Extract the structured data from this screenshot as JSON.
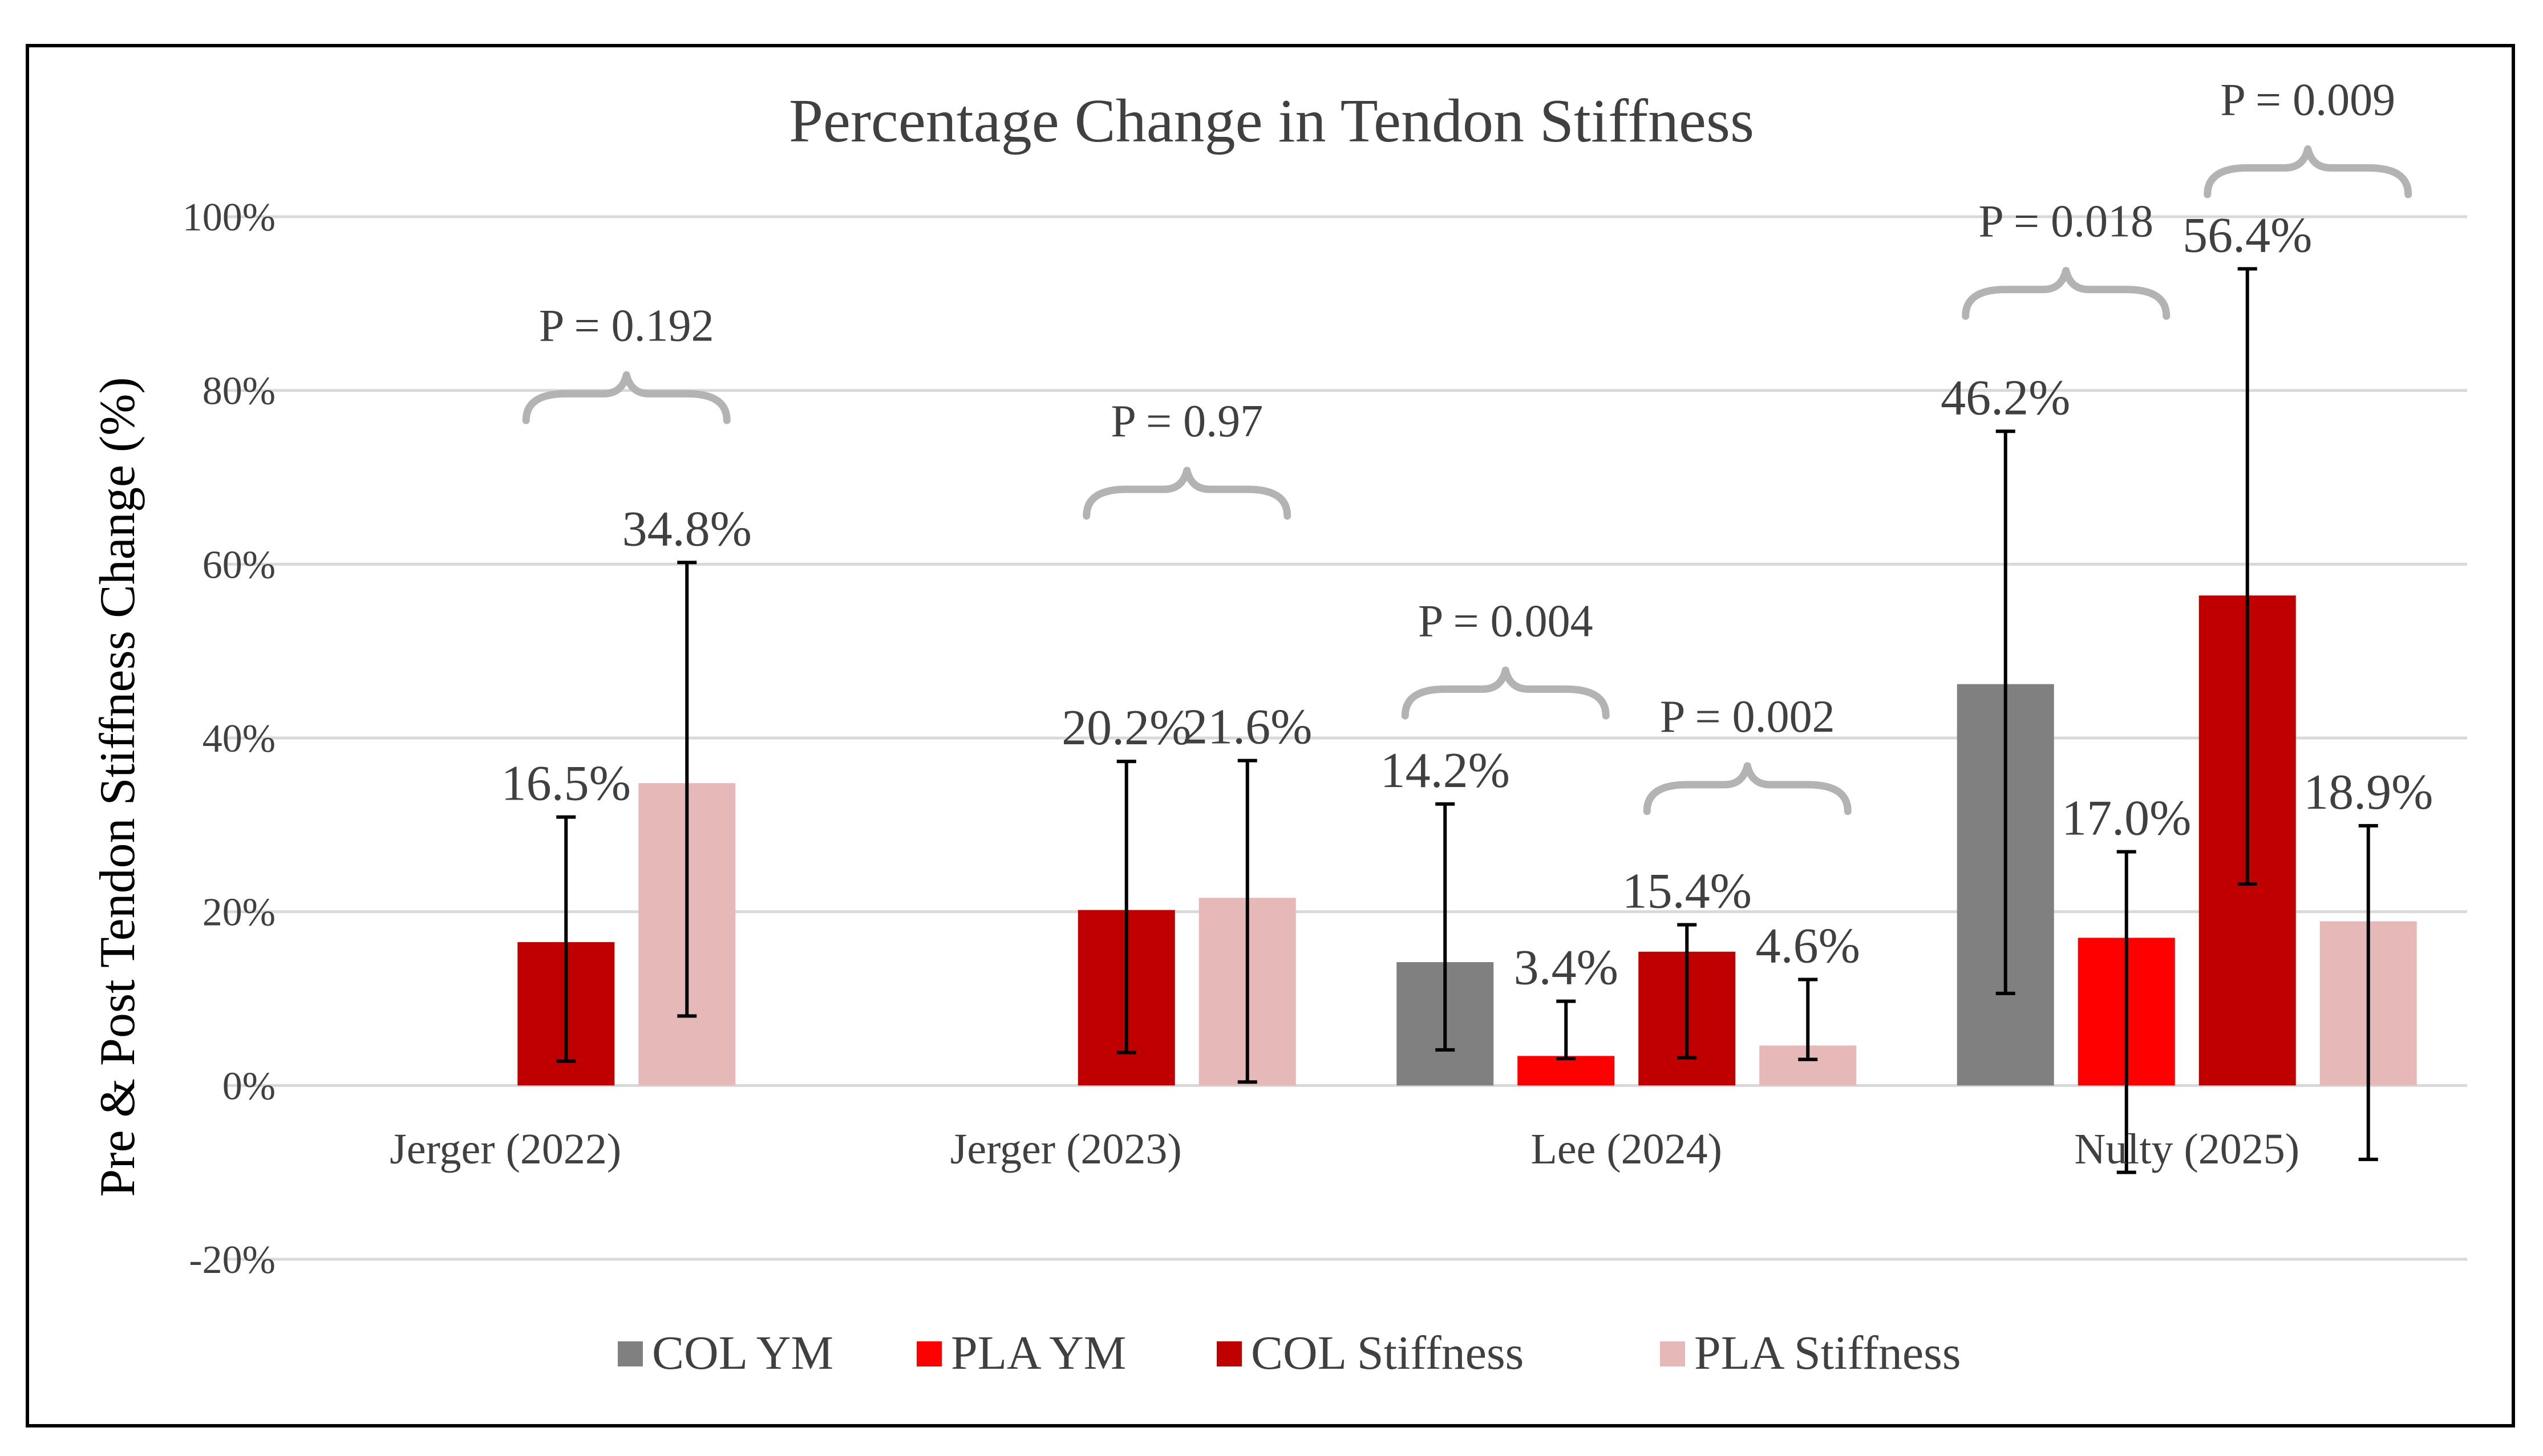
{
  "chart_data": {
    "type": "bar",
    "title": "Percentage Change in Tendon Stiffness",
    "xlabel": "",
    "ylabel": "Pre & Post Tendon Stiffness  Change (%)",
    "ylim": [
      -20,
      100
    ],
    "yticks": [
      100,
      80,
      60,
      40,
      20,
      0,
      -20
    ],
    "ytick_labels": [
      "100%",
      "80%",
      "60%",
      "40%",
      "20%",
      "0%",
      "-20%"
    ],
    "grid": true,
    "legend": "bottom",
    "categories": [
      "Jerger (2022)",
      "Jerger (2023)",
      "Lee (2024)",
      "Nulty (2025)"
    ],
    "series": [
      {
        "name": "COL YM",
        "color": "#808080",
        "values": [
          null,
          null,
          14.2,
          46.2
        ],
        "labels": [
          "",
          "",
          "14.2%",
          "46.2%"
        ],
        "err_low": [
          null,
          null,
          4.1,
          10.6
        ],
        "err_high": [
          null,
          null,
          32.4,
          75.3
        ]
      },
      {
        "name": "PLA YM",
        "color": "#ff0000",
        "values": [
          null,
          null,
          3.4,
          17.0
        ],
        "labels": [
          "",
          "",
          "3.4%",
          "17.0%"
        ],
        "err_low": [
          null,
          null,
          3.1,
          -10.0
        ],
        "err_high": [
          null,
          null,
          9.7,
          26.9
        ]
      },
      {
        "name": "COL Stiffness",
        "color": "#c00000",
        "values": [
          16.5,
          20.2,
          15.4,
          56.4
        ],
        "labels": [
          "16.5%",
          "20.2%",
          "15.4%",
          "56.4%"
        ],
        "err_low": [
          2.8,
          3.8,
          3.2,
          23.2
        ],
        "err_high": [
          30.9,
          37.3,
          18.5,
          94.0
        ]
      },
      {
        "name": "PLA Stiffness",
        "color": "#e6b8b7",
        "values": [
          34.8,
          21.6,
          4.6,
          18.9
        ],
        "labels": [
          "34.8%",
          "21.6%",
          "4.6%",
          "18.9%"
        ],
        "err_low": [
          8.0,
          0.4,
          3.0,
          -8.5
        ],
        "err_high": [
          60.2,
          37.4,
          12.2,
          29.9
        ]
      }
    ],
    "annotations": [
      {
        "text": "P = 0.192",
        "category": 0,
        "from_series": 2,
        "to_series": 3,
        "level": 78
      },
      {
        "text": "P = 0.97",
        "category": 1,
        "from_series": 2,
        "to_series": 3,
        "level": 67
      },
      {
        "text": "P = 0.004",
        "category": 2,
        "from_series": 0,
        "to_series": 1,
        "level": 44
      },
      {
        "text": "P = 0.002",
        "category": 2,
        "from_series": 2,
        "to_series": 3,
        "level": 33
      },
      {
        "text": "P = 0.018",
        "category": 3,
        "from_series": 0,
        "to_series": 1,
        "level": 90
      },
      {
        "text": "P = 0.009",
        "category": 3,
        "from_series": 2,
        "to_series": 3,
        "level": 104
      }
    ]
  }
}
